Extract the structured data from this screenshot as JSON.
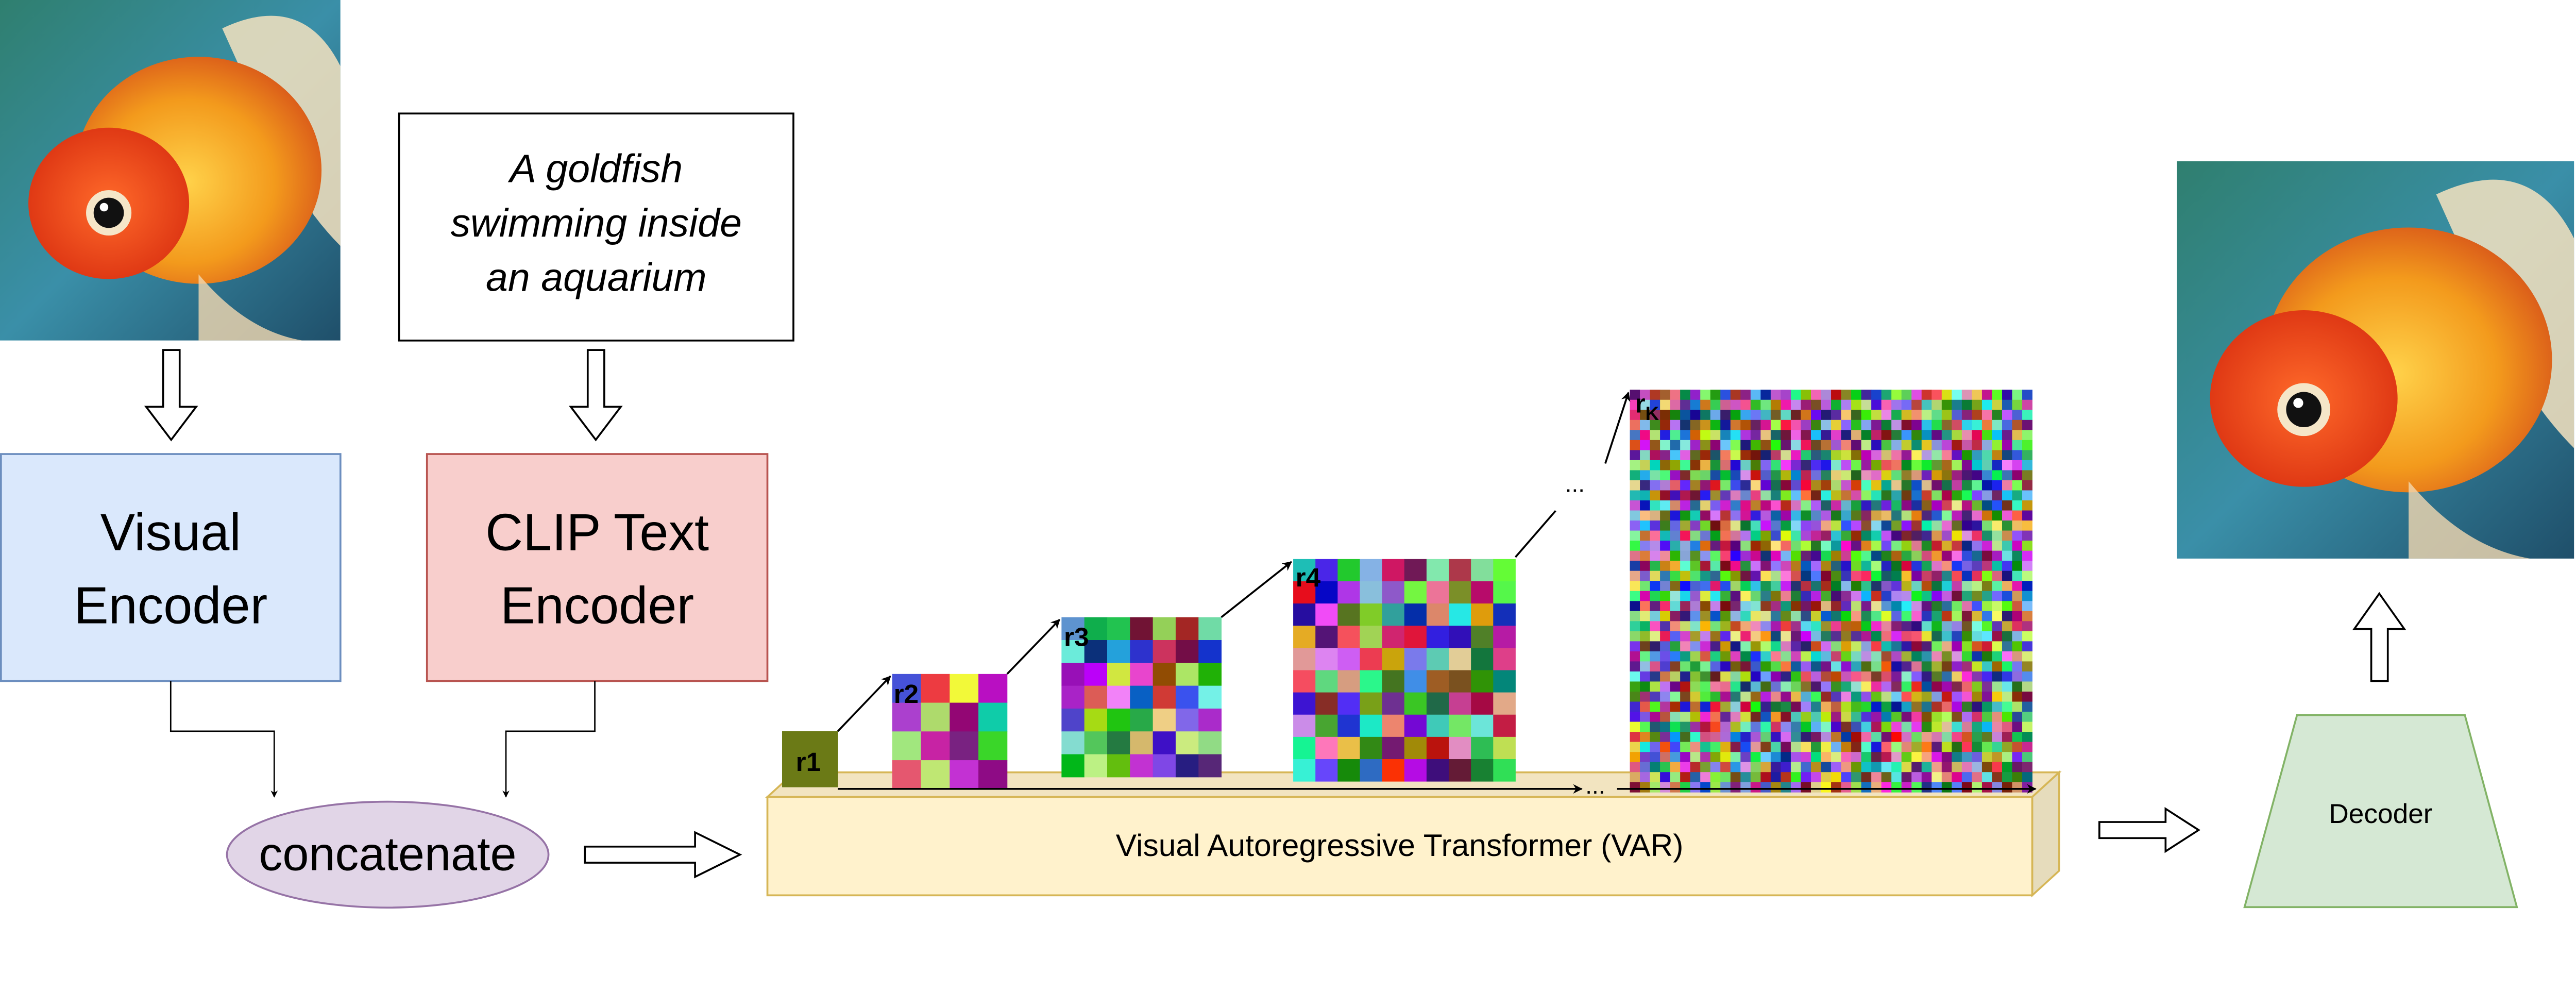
{
  "input_image": {
    "icon": "goldfish-photo"
  },
  "prompt_text": {
    "line1": "A goldfish",
    "line2": "swimming inside",
    "line3": "an aquarium"
  },
  "visual_encoder": {
    "line1": "Visual",
    "line2": "Encoder",
    "fill": "#dae8fc",
    "stroke": "#6c8ebf"
  },
  "clip_encoder": {
    "line1": "CLIP Text",
    "line2": "Encoder",
    "fill": "#f8cecc",
    "stroke": "#b85450"
  },
  "concatenate": {
    "label": "concatenate",
    "fill": "#e1d5e7",
    "stroke": "#9673a6"
  },
  "var": {
    "label": "Visual Autoregressive Transformer (VAR)",
    "fill": "#fff2cc",
    "stroke": "#d6b656"
  },
  "scales": [
    {
      "label": "r1"
    },
    {
      "label": "r2"
    },
    {
      "label": "r3"
    },
    {
      "label": "r4"
    },
    {
      "label": "r",
      "sub": "K"
    }
  ],
  "ellipsis": "...",
  "decoder": {
    "label": "Decoder",
    "fill": "#d5e8d4",
    "stroke": "#82b366"
  },
  "output_image": {
    "icon": "goldfish-photo"
  }
}
